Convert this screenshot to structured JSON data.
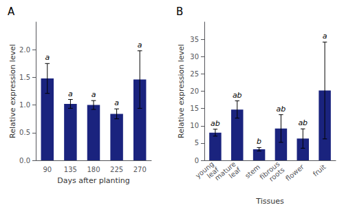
{
  "chart_data": [
    {
      "type": "bar",
      "title": "A",
      "categories": [
        "90",
        "135",
        "180",
        "225",
        "270"
      ],
      "values": [
        1.48,
        1.02,
        1.0,
        0.84,
        1.46
      ],
      "errors": [
        0.27,
        0.08,
        0.08,
        0.09,
        0.52
      ],
      "annotations": [
        "a",
        "a",
        "a",
        "a",
        "a"
      ],
      "xlabel": "Days after planting",
      "ylabel": "Relative expression level",
      "ylim": [
        0,
        2.5
      ],
      "yticks": [
        {
          "value": 0.0,
          "label": "0.0"
        },
        0.5,
        {
          "value": 1.0,
          "label": "1.0"
        },
        1.5,
        {
          "value": 2.0,
          "label": "2.0"
        }
      ],
      "color": "#1a237e",
      "grid": false
    },
    {
      "type": "bar",
      "title": "B",
      "categories": [
        "young\nleaf",
        "mature\nleaf",
        "stem",
        "fibrous\nroots",
        "flower",
        "fruit"
      ],
      "values": [
        8.0,
        14.7,
        3.2,
        9.2,
        6.3,
        20.2
      ],
      "errors": [
        1.0,
        2.5,
        0.5,
        4.0,
        2.8,
        14.0
      ],
      "annotations": [
        "ab",
        "ab",
        "b",
        "ab",
        "ab",
        "a"
      ],
      "xlabel": "Tissues",
      "ylabel": "Relative expression level",
      "ylim": [
        0,
        40
      ],
      "yticks": [
        0,
        5,
        10,
        15,
        20,
        25,
        30,
        35
      ],
      "color": "#1a237e",
      "grid": false
    }
  ]
}
